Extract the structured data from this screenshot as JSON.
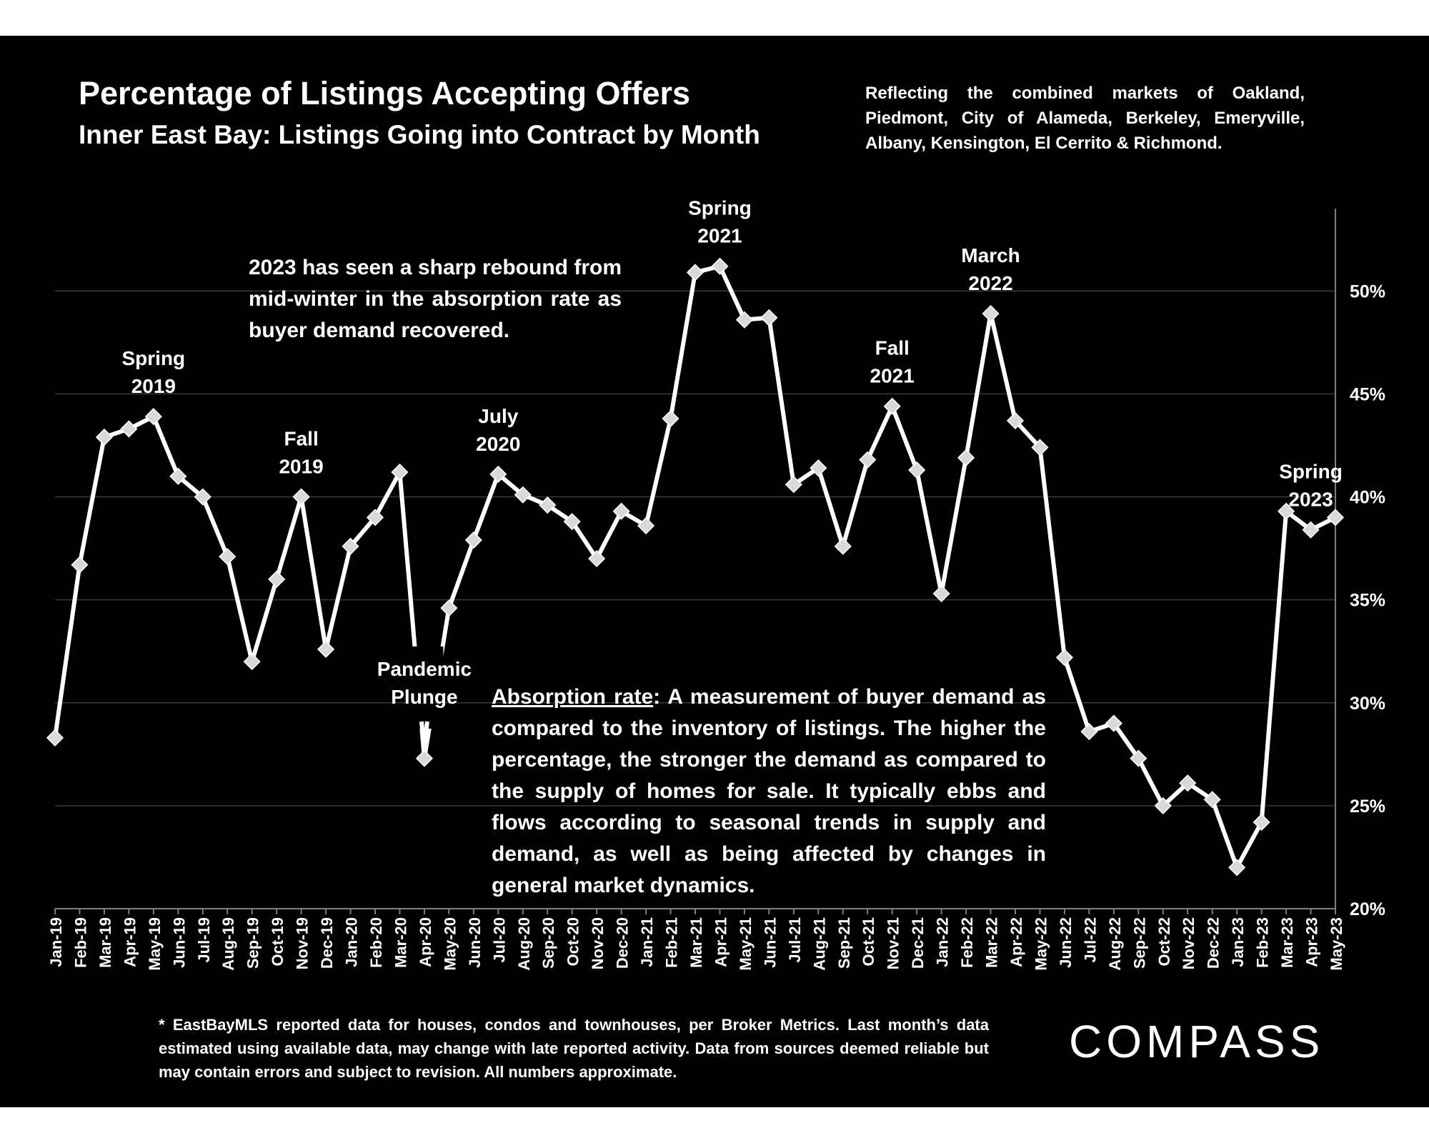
{
  "title": "Percentage of Listings Accepting Offers",
  "subtitle": "Inner East Bay: Listings Going into Contract by Month",
  "coverage_note": "Reflecting the combined markets of Oakland, Piedmont, City of Alameda, Berkeley, Emeryville, Albany, Kensington, El Cerrito & Richmond.",
  "rebound_note": "2023 has seen a sharp rebound from mid-winter in the absorption rate as buyer demand recovered.",
  "definition": {
    "term": "Absorption rate",
    "text": ":  A measurement of buyer demand as compared to the inventory of listings. The higher the percentage, the stronger the demand as compared to the supply of homes for sale. It typically ebbs and flows according to seasonal trends in supply and demand, as well as being affected by changes in general market dynamics."
  },
  "footnote": "* EastBayMLS reported data for houses, condos and townhouses, per Broker Metrics. Last month’s data estimated using available data, may change with late reported activity. Data from sources deemed reliable but may contain errors and subject to revision. All numbers approximate.",
  "logo": "COMPASS",
  "colors": {
    "background": "#000000",
    "line": "#ffffff",
    "marker": "#d9d9d9",
    "text": "#ffffff",
    "grid": "#3a3a3a"
  },
  "chart_data": {
    "type": "line",
    "title": "Percentage of Listings Accepting Offers",
    "subtitle": "Inner East Bay: Listings Going into Contract by Month",
    "xlabel": "",
    "ylabel": "",
    "y_axis_position": "right",
    "ylim": [
      20,
      54
    ],
    "yticks": [
      20,
      25,
      30,
      35,
      40,
      45,
      50
    ],
    "ytick_labels": [
      "20%",
      "25%",
      "30%",
      "35%",
      "40%",
      "45%",
      "50%"
    ],
    "grid": true,
    "categories": [
      "Jan-19",
      "Feb-19",
      "Mar-19",
      "Apr-19",
      "May-19",
      "Jun-19",
      "Jul-19",
      "Aug-19",
      "Sep-19",
      "Oct-19",
      "Nov-19",
      "Dec-19",
      "Jan-20",
      "Feb-20",
      "Mar-20",
      "Apr-20",
      "May-20",
      "Jun-20",
      "Jul-20",
      "Aug-20",
      "Sep-20",
      "Oct-20",
      "Nov-20",
      "Dec-20",
      "Jan-21",
      "Feb-21",
      "Mar-21",
      "Apr-21",
      "May-21",
      "Jun-21",
      "Jul-21",
      "Aug-21",
      "Sep-21",
      "Oct-21",
      "Nov-21",
      "Dec-21",
      "Jan-22",
      "Feb-22",
      "Mar-22",
      "Apr-22",
      "May-22",
      "Jun-22",
      "Jul-22",
      "Aug-22",
      "Sep-22",
      "Oct-22",
      "Nov-22",
      "Dec-22",
      "Jan-23",
      "Feb-23",
      "Mar-23",
      "Apr-23",
      "May-23"
    ],
    "series": [
      {
        "name": "",
        "values": [
          28.3,
          36.7,
          42.9,
          43.3,
          43.9,
          41.0,
          40.0,
          37.1,
          32.0,
          36.0,
          40.0,
          32.6,
          37.6,
          39.0,
          41.2,
          27.3,
          34.6,
          37.9,
          41.1,
          40.1,
          39.6,
          38.8,
          37.0,
          39.3,
          38.6,
          43.8,
          50.9,
          51.2,
          48.6,
          48.7,
          40.6,
          41.4,
          37.6,
          41.8,
          44.4,
          41.3,
          35.3,
          41.9,
          48.9,
          43.7,
          42.4,
          32.2,
          28.6,
          29.0,
          27.3,
          25.0,
          26.1,
          25.3,
          22.0,
          24.2,
          39.3,
          38.4,
          39.0
        ]
      }
    ],
    "annotations": [
      {
        "label_lines": [
          "Spring",
          "2019"
        ],
        "category": "May-19"
      },
      {
        "label_lines": [
          "Fall",
          "2019"
        ],
        "category": "Nov-19"
      },
      {
        "label_lines": [
          "Pandemic",
          "Plunge"
        ],
        "category": "Apr-20"
      },
      {
        "label_lines": [
          "July",
          "2020"
        ],
        "category": "Jul-20"
      },
      {
        "label_lines": [
          "Spring",
          "2021"
        ],
        "category": "Apr-21"
      },
      {
        "label_lines": [
          "Fall",
          "2021"
        ],
        "category": "Nov-21"
      },
      {
        "label_lines": [
          "March",
          "2022"
        ],
        "category": "Mar-22"
      },
      {
        "label_lines": [
          "Spring",
          "2023"
        ],
        "category": "Apr-23"
      }
    ]
  }
}
